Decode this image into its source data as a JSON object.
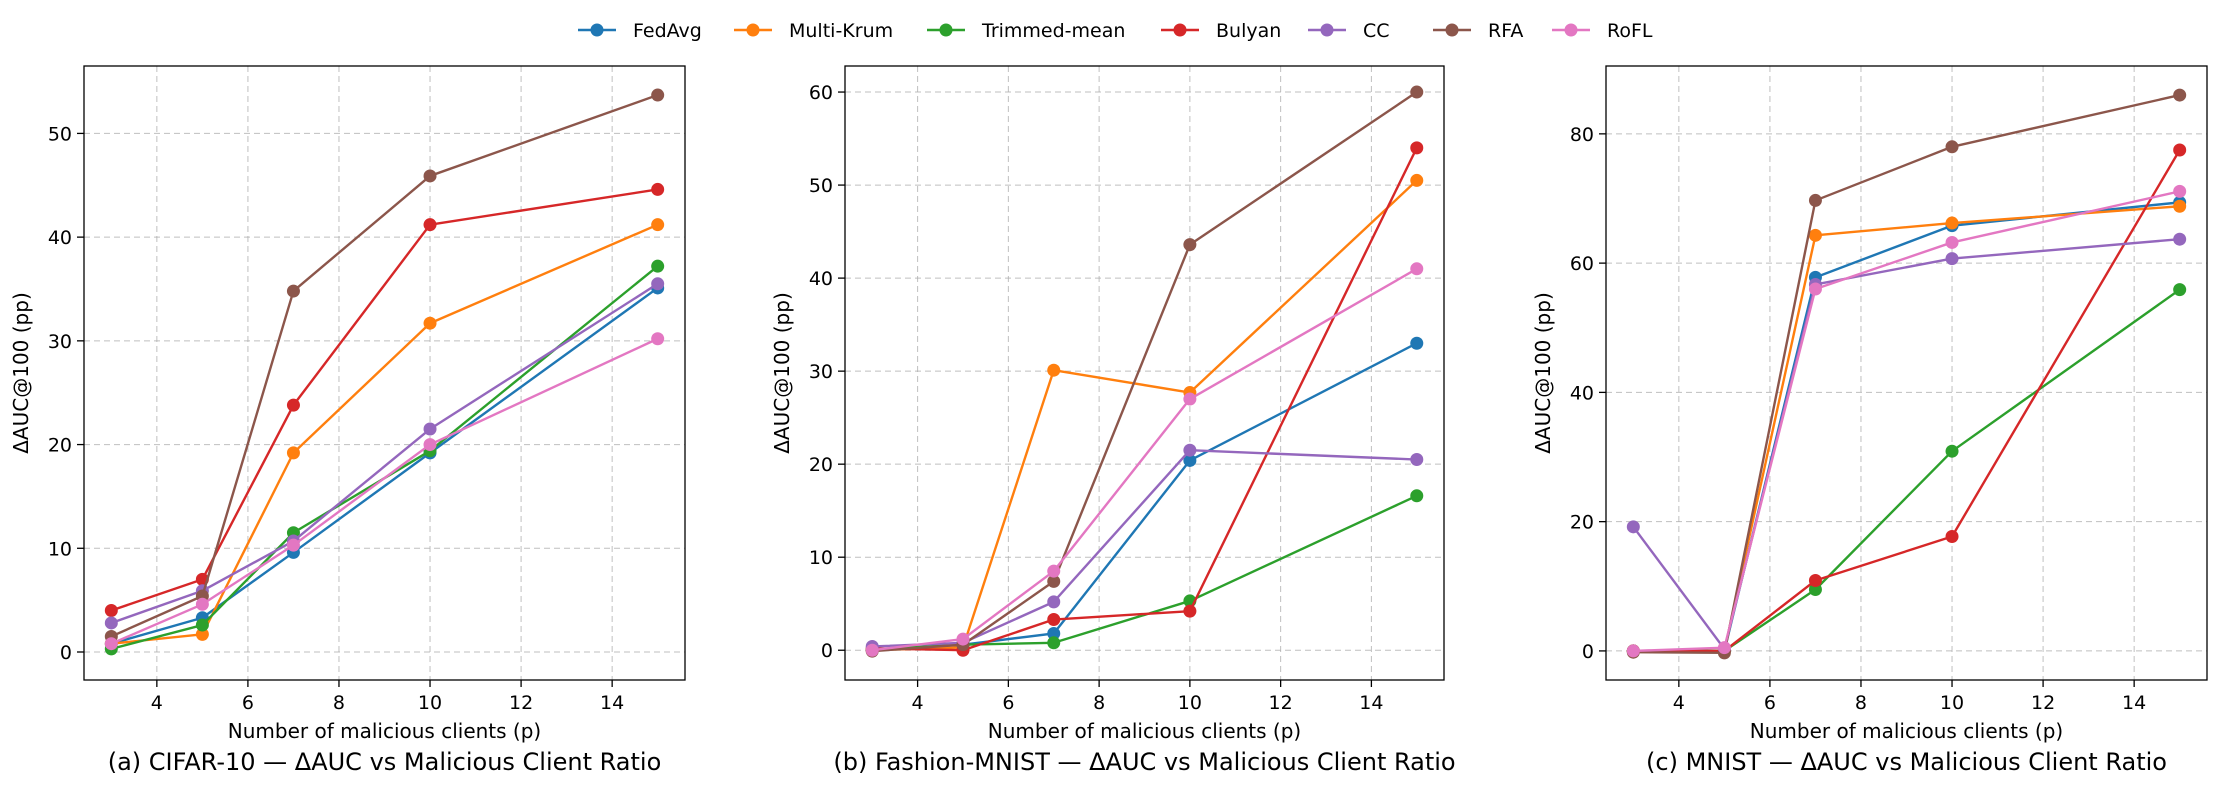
{
  "legend": {
    "placement": "top-center",
    "entries": [
      "FedAvg",
      "Multi-Krum",
      "Trimmed-mean",
      "Bulyan",
      "CC",
      "RFA",
      "RoFL"
    ]
  },
  "chart_data": [
    {
      "type": "line",
      "caption": "(a) CIFAR-10 — ΔAUC vs Malicious Client Ratio",
      "xlabel": "Number of malicious clients (p)",
      "ylabel": "ΔAUC@100 (pp)",
      "grid": true,
      "xlim": [
        2.4,
        15.6
      ],
      "ylim": [
        -2.7,
        56.5
      ],
      "xticks": [
        4,
        6,
        8,
        10,
        12,
        14
      ],
      "yticks": [
        0,
        10,
        20,
        30,
        40,
        50
      ],
      "x": [
        3,
        5,
        7,
        10,
        15
      ],
      "series": [
        {
          "name": "FedAvg",
          "color": "#1f77b4",
          "values": [
            0.8,
            3.3,
            9.6,
            19.2,
            35.1
          ]
        },
        {
          "name": "Multi-Krum",
          "color": "#ff7f0e",
          "values": [
            0.8,
            1.7,
            19.2,
            31.7,
            41.2
          ]
        },
        {
          "name": "Trimmed-mean",
          "color": "#2ca02c",
          "values": [
            0.3,
            2.6,
            11.5,
            19.4,
            37.2
          ]
        },
        {
          "name": "Bulyan",
          "color": "#d62728",
          "values": [
            4.0,
            7.0,
            23.8,
            41.2,
            44.6
          ]
        },
        {
          "name": "CC",
          "color": "#9467bd",
          "values": [
            2.8,
            5.9,
            10.7,
            21.5,
            35.5
          ]
        },
        {
          "name": "RFA",
          "color": "#8c564b",
          "values": [
            1.5,
            5.4,
            34.8,
            45.9,
            53.7
          ]
        },
        {
          "name": "RoFL",
          "color": "#e377c2",
          "values": [
            0.8,
            4.6,
            10.3,
            20.0,
            30.2
          ]
        }
      ]
    },
    {
      "type": "line",
      "caption": "(b) Fashion-MNIST — ΔAUC vs Malicious Client Ratio",
      "xlabel": "Number of malicious clients (p)",
      "ylabel": "ΔAUC@100 (pp)",
      "grid": true,
      "xlim": [
        2.4,
        15.6
      ],
      "ylim": [
        -3.2,
        62.8
      ],
      "xticks": [
        4,
        6,
        8,
        10,
        12,
        14
      ],
      "yticks": [
        0,
        10,
        20,
        30,
        40,
        50,
        60
      ],
      "x": [
        3,
        5,
        7,
        10,
        15
      ],
      "series": [
        {
          "name": "FedAvg",
          "color": "#1f77b4",
          "values": [
            0.0,
            0.6,
            1.8,
            20.4,
            33.0
          ]
        },
        {
          "name": "Multi-Krum",
          "color": "#ff7f0e",
          "values": [
            0.0,
            0.3,
            30.1,
            27.7,
            50.5
          ]
        },
        {
          "name": "Trimmed-mean",
          "color": "#2ca02c",
          "values": [
            0.1,
            0.6,
            0.8,
            5.3,
            16.6
          ]
        },
        {
          "name": "Bulyan",
          "color": "#d62728",
          "values": [
            0.2,
            0.0,
            3.3,
            4.2,
            54.0
          ]
        },
        {
          "name": "CC",
          "color": "#9467bd",
          "values": [
            0.4,
            0.8,
            5.2,
            21.5,
            20.5
          ]
        },
        {
          "name": "RFA",
          "color": "#8c564b",
          "values": [
            -0.1,
            0.6,
            7.4,
            43.6,
            60.0
          ]
        },
        {
          "name": "RoFL",
          "color": "#e377c2",
          "values": [
            0.0,
            1.2,
            8.5,
            27.0,
            41.0
          ]
        }
      ]
    },
    {
      "type": "line",
      "caption": "(c) MNIST — ΔAUC vs Malicious Client Ratio",
      "xlabel": "Number of malicious clients (p)",
      "ylabel": "ΔAUC@100 (pp)",
      "grid": true,
      "xlim": [
        2.4,
        15.6
      ],
      "ylim": [
        -4.5,
        90.5
      ],
      "xticks": [
        4,
        6,
        8,
        10,
        12,
        14
      ],
      "yticks": [
        0,
        20,
        40,
        60,
        80
      ],
      "x": [
        3,
        5,
        7,
        10,
        15
      ],
      "series": [
        {
          "name": "FedAvg",
          "color": "#1f77b4",
          "values": [
            0.0,
            0.0,
            57.8,
            65.8,
            69.4
          ]
        },
        {
          "name": "Multi-Krum",
          "color": "#ff7f0e",
          "values": [
            0.0,
            0.0,
            64.3,
            66.2,
            68.8
          ]
        },
        {
          "name": "Trimmed-mean",
          "color": "#2ca02c",
          "values": [
            0.0,
            0.0,
            9.5,
            30.9,
            55.9
          ]
        },
        {
          "name": "Bulyan",
          "color": "#d62728",
          "values": [
            0.0,
            0.0,
            10.9,
            17.7,
            77.5
          ]
        },
        {
          "name": "CC",
          "color": "#9467bd",
          "values": [
            19.2,
            0.3,
            56.7,
            60.7,
            63.7
          ]
        },
        {
          "name": "RFA",
          "color": "#8c564b",
          "values": [
            -0.2,
            -0.3,
            69.7,
            78.0,
            86.0
          ]
        },
        {
          "name": "RoFL",
          "color": "#e377c2",
          "values": [
            0.0,
            0.5,
            56.0,
            63.2,
            71.1
          ]
        }
      ]
    }
  ]
}
